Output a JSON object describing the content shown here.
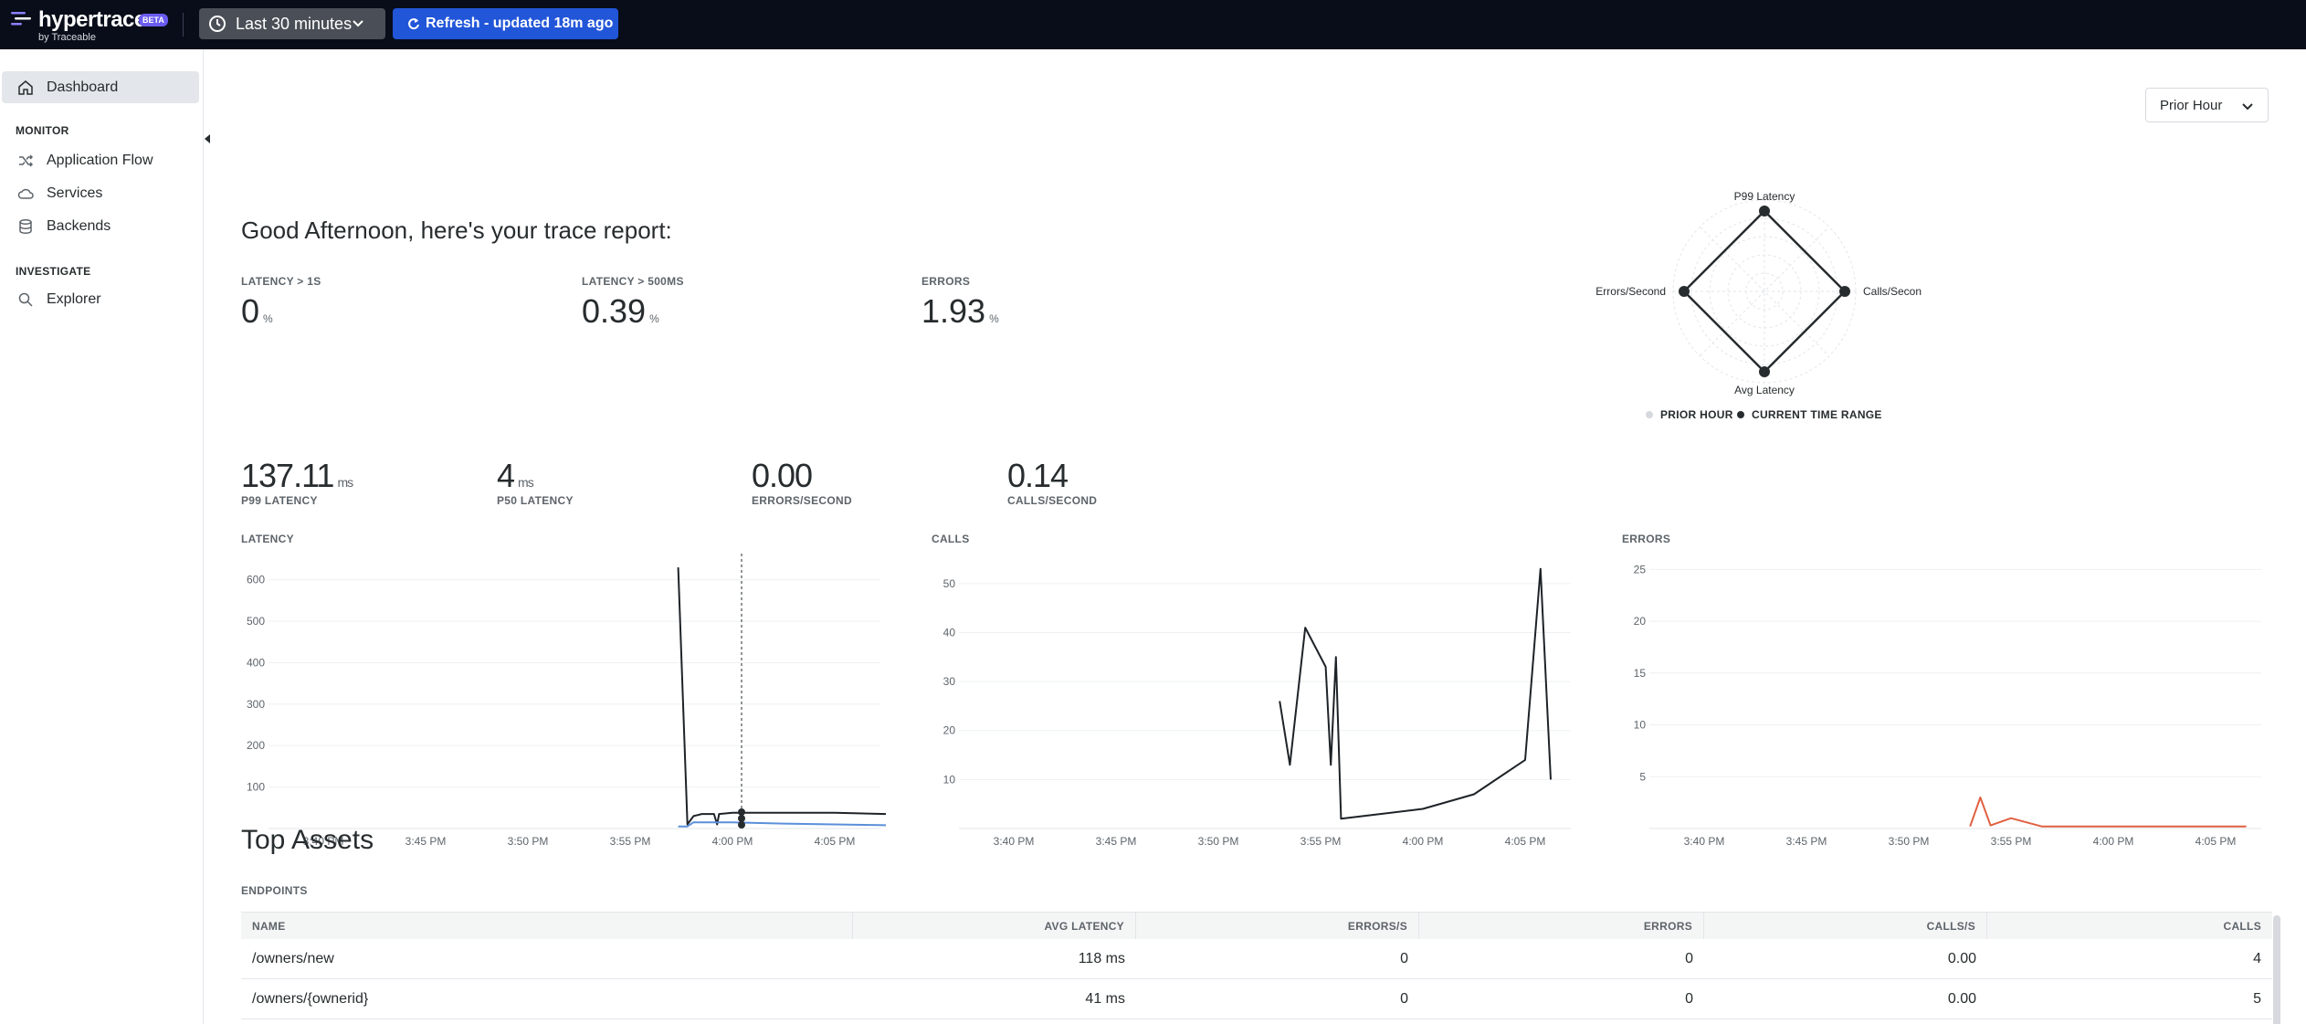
{
  "topbar": {
    "logo_text": "hypertrace",
    "beta": "BETA",
    "by_line": "by Traceable",
    "time_range": "Last 30 minutes",
    "refresh_label": "Refresh - updated 18m ago"
  },
  "sidebar": {
    "dashboard": "Dashboard",
    "monitor_heading": "MONITOR",
    "monitor_items": [
      "Application Flow",
      "Services",
      "Backends"
    ],
    "investigate_heading": "INVESTIGATE",
    "investigate_items": [
      "Explorer"
    ]
  },
  "main": {
    "greeting": "Good Afternoon, here's your trace report:",
    "compare_select": "Prior Hour",
    "stats": [
      {
        "label": "LATENCY > 1S",
        "value": "0",
        "unit": "%"
      },
      {
        "label": "LATENCY > 500MS",
        "value": "0.39",
        "unit": "%"
      },
      {
        "label": "ERRORS",
        "value": "1.93",
        "unit": "%"
      }
    ],
    "metrics": [
      {
        "value": "137.11",
        "unit": "ms",
        "label": "P99 LATENCY"
      },
      {
        "value": "4",
        "unit": "ms",
        "label": "P50 LATENCY"
      },
      {
        "value": "0.00",
        "unit": "",
        "label": "ERRORS/SECOND"
      },
      {
        "value": "0.14",
        "unit": "",
        "label": "CALLS/SECOND"
      }
    ],
    "radar": {
      "axes": [
        "P99 Latency",
        "Calls/Second",
        "Avg Latency",
        "Errors/Second"
      ],
      "legend": [
        "PRIOR HOUR",
        "CURRENT TIME RANGE"
      ]
    },
    "top_assets": "Top Assets",
    "endpoints_label": "ENDPOINTS",
    "table": {
      "headers": [
        "NAME",
        "AVG LATENCY",
        "ERRORS/S",
        "ERRORS",
        "CALLS/S",
        "CALLS"
      ],
      "rows": [
        [
          "/owners/new",
          "118 ms",
          "0",
          "0",
          "0.00",
          "4"
        ],
        [
          "/owners/{ownerid}",
          "41 ms",
          "0",
          "0",
          "0.00",
          "5"
        ]
      ]
    }
  },
  "chart_data": [
    {
      "type": "line",
      "title": "LATENCY",
      "x_ticks": [
        "3:40 PM",
        "3:45 PM",
        "3:50 PM",
        "3:55 PM",
        "4:00 PM",
        "4:05 PM"
      ],
      "y_ticks": [
        100,
        200,
        300,
        400,
        500,
        600
      ],
      "ylim": [
        0,
        650
      ],
      "series": [
        {
          "color": "#1e2328",
          "x": [
            3.47,
            3.56,
            3.62,
            3.7,
            3.82,
            3.85,
            3.87,
            4.0,
            4.5,
            5.0,
            5.5
          ],
          "y": [
            630,
            10,
            30,
            35,
            35,
            10,
            35,
            38,
            38,
            38,
            35
          ]
        },
        {
          "color": "#5b8fd9",
          "x": [
            3.47,
            3.56,
            3.62,
            4.0,
            4.5,
            5.0,
            5.5
          ],
          "y": [
            5,
            5,
            15,
            15,
            12,
            10,
            8
          ]
        }
      ]
    },
    {
      "type": "line",
      "title": "CALLS",
      "x_ticks": [
        "3:40 PM",
        "3:45 PM",
        "3:50 PM",
        "3:55 PM",
        "4:00 PM",
        "4:05 PM"
      ],
      "y_ticks": [
        10,
        20,
        30,
        40,
        50
      ],
      "ylim": [
        0,
        55
      ],
      "series": [
        {
          "color": "#1e2328",
          "x": [
            2.6,
            2.7,
            2.85,
            3.05,
            3.1,
            3.15,
            3.2,
            4.0,
            4.5,
            5.0,
            5.15,
            5.25
          ],
          "y": [
            26,
            13,
            41,
            33,
            13,
            35,
            2,
            4,
            7,
            14,
            53,
            10
          ]
        }
      ]
    },
    {
      "type": "line",
      "title": "ERRORS",
      "x_ticks": [
        "3:40 PM",
        "3:45 PM",
        "3:50 PM",
        "3:55 PM",
        "4:00 PM",
        "4:05 PM"
      ],
      "y_ticks": [
        5,
        10,
        15,
        20,
        25
      ],
      "ylim": [
        0,
        26
      ],
      "series": [
        {
          "color": "#e06042",
          "x": [
            2.6,
            2.7,
            2.8,
            3.0,
            3.3,
            5.3
          ],
          "y": [
            0.2,
            3,
            0.3,
            1,
            0.2,
            0.2
          ]
        }
      ]
    }
  ]
}
